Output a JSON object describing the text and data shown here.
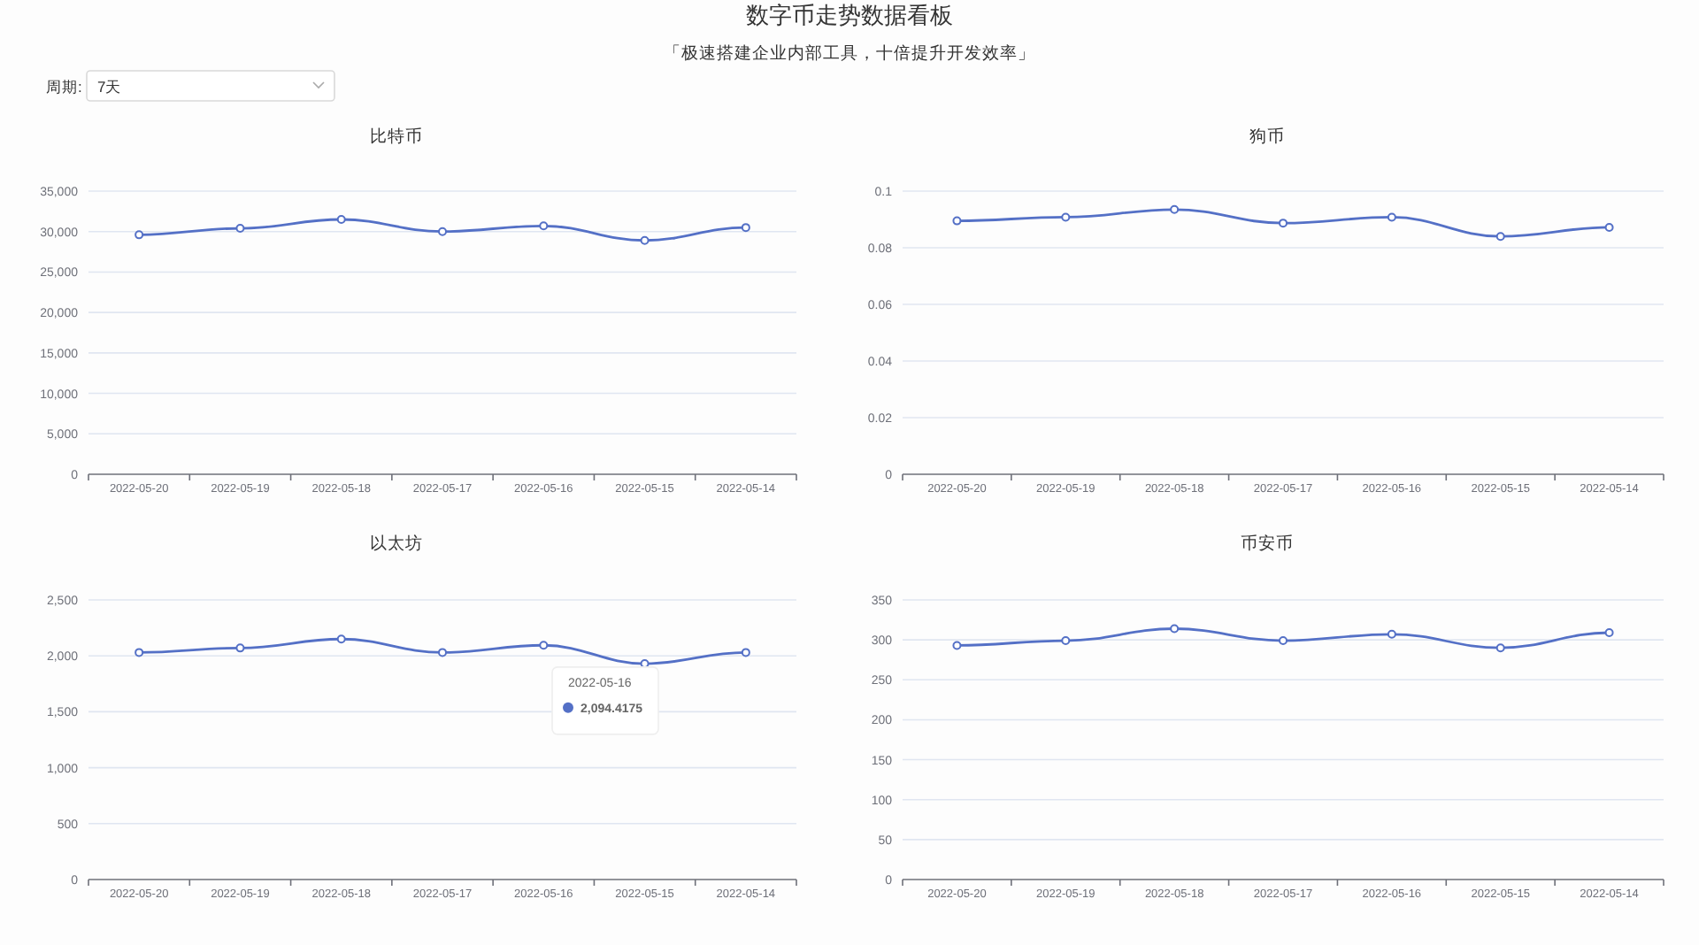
{
  "chart_data": [
    {
      "type": "other",
      "title": "数字币走势数据看板",
      "subtitle": "「极速搭建企业内部工具，十倍提升开发效率」",
      "annotations": [
        "周期:",
        "7天"
      ]
    },
    {
      "type": "line",
      "title": "比特币",
      "categories": [
        "2022-05-20",
        "2022-05-19",
        "2022-05-18",
        "2022-05-17",
        "2022-05-16",
        "2022-05-15",
        "2022-05-14"
      ],
      "values": [
        29600,
        30400,
        31500,
        30000,
        30700,
        28900,
        30500
      ],
      "color": "#5470c6",
      "marker": "circle",
      "grid": "y",
      "ylim": [
        0,
        35000
      ],
      "yticks": [
        0,
        {
          "value": 5000,
          "label": "5,000"
        },
        {
          "value": 10000,
          "label": "10,000"
        },
        {
          "value": 15000,
          "label": "15,000"
        },
        {
          "value": 20000,
          "label": "20,000"
        },
        {
          "value": 25000,
          "label": "25,000"
        },
        {
          "value": 30000,
          "label": "30,000"
        },
        {
          "value": 35000,
          "label": "35,000"
        }
      ]
    },
    {
      "type": "line",
      "title": "狗币",
      "categories": [
        "2022-05-20",
        "2022-05-19",
        "2022-05-18",
        "2022-05-17",
        "2022-05-16",
        "2022-05-15",
        "2022-05-14"
      ],
      "values": [
        0.0895,
        0.0908,
        0.0935,
        0.0887,
        0.0908,
        0.084,
        0.0872
      ],
      "color": "#5470c6",
      "marker": "circle",
      "grid": "y",
      "ylim": [
        0,
        0.1
      ],
      "yticks": [
        0,
        0.02,
        0.04,
        0.06,
        0.08,
        0.1
      ]
    },
    {
      "type": "line",
      "title": "以太坊",
      "categories": [
        "2022-05-20",
        "2022-05-19",
        "2022-05-18",
        "2022-05-17",
        "2022-05-16",
        "2022-05-15",
        "2022-05-14"
      ],
      "values": [
        2030,
        2070,
        2150,
        2030,
        2094.4175,
        1930,
        2030
      ],
      "color": "#5470c6",
      "marker": "circle",
      "grid": "y",
      "ylim": [
        0,
        2500
      ],
      "yticks": [
        0,
        500,
        {
          "value": 1000,
          "label": "1,000"
        },
        {
          "value": 1500,
          "label": "1,500"
        },
        {
          "value": 2000,
          "label": "2,000"
        },
        {
          "value": 2500,
          "label": "2,500"
        }
      ],
      "annotations": [
        "2022-05-16",
        "2,094.4175"
      ]
    },
    {
      "type": "line",
      "title": "币安币",
      "categories": [
        "2022-05-20",
        "2022-05-19",
        "2022-05-18",
        "2022-05-17",
        "2022-05-16",
        "2022-05-15",
        "2022-05-14"
      ],
      "values": [
        293,
        299,
        314,
        299,
        307,
        290,
        309
      ],
      "color": "#5470c6",
      "marker": "circle",
      "grid": "y",
      "ylim": [
        0,
        350
      ],
      "yticks": [
        0,
        50,
        100,
        150,
        200,
        250,
        300,
        350
      ]
    }
  ]
}
